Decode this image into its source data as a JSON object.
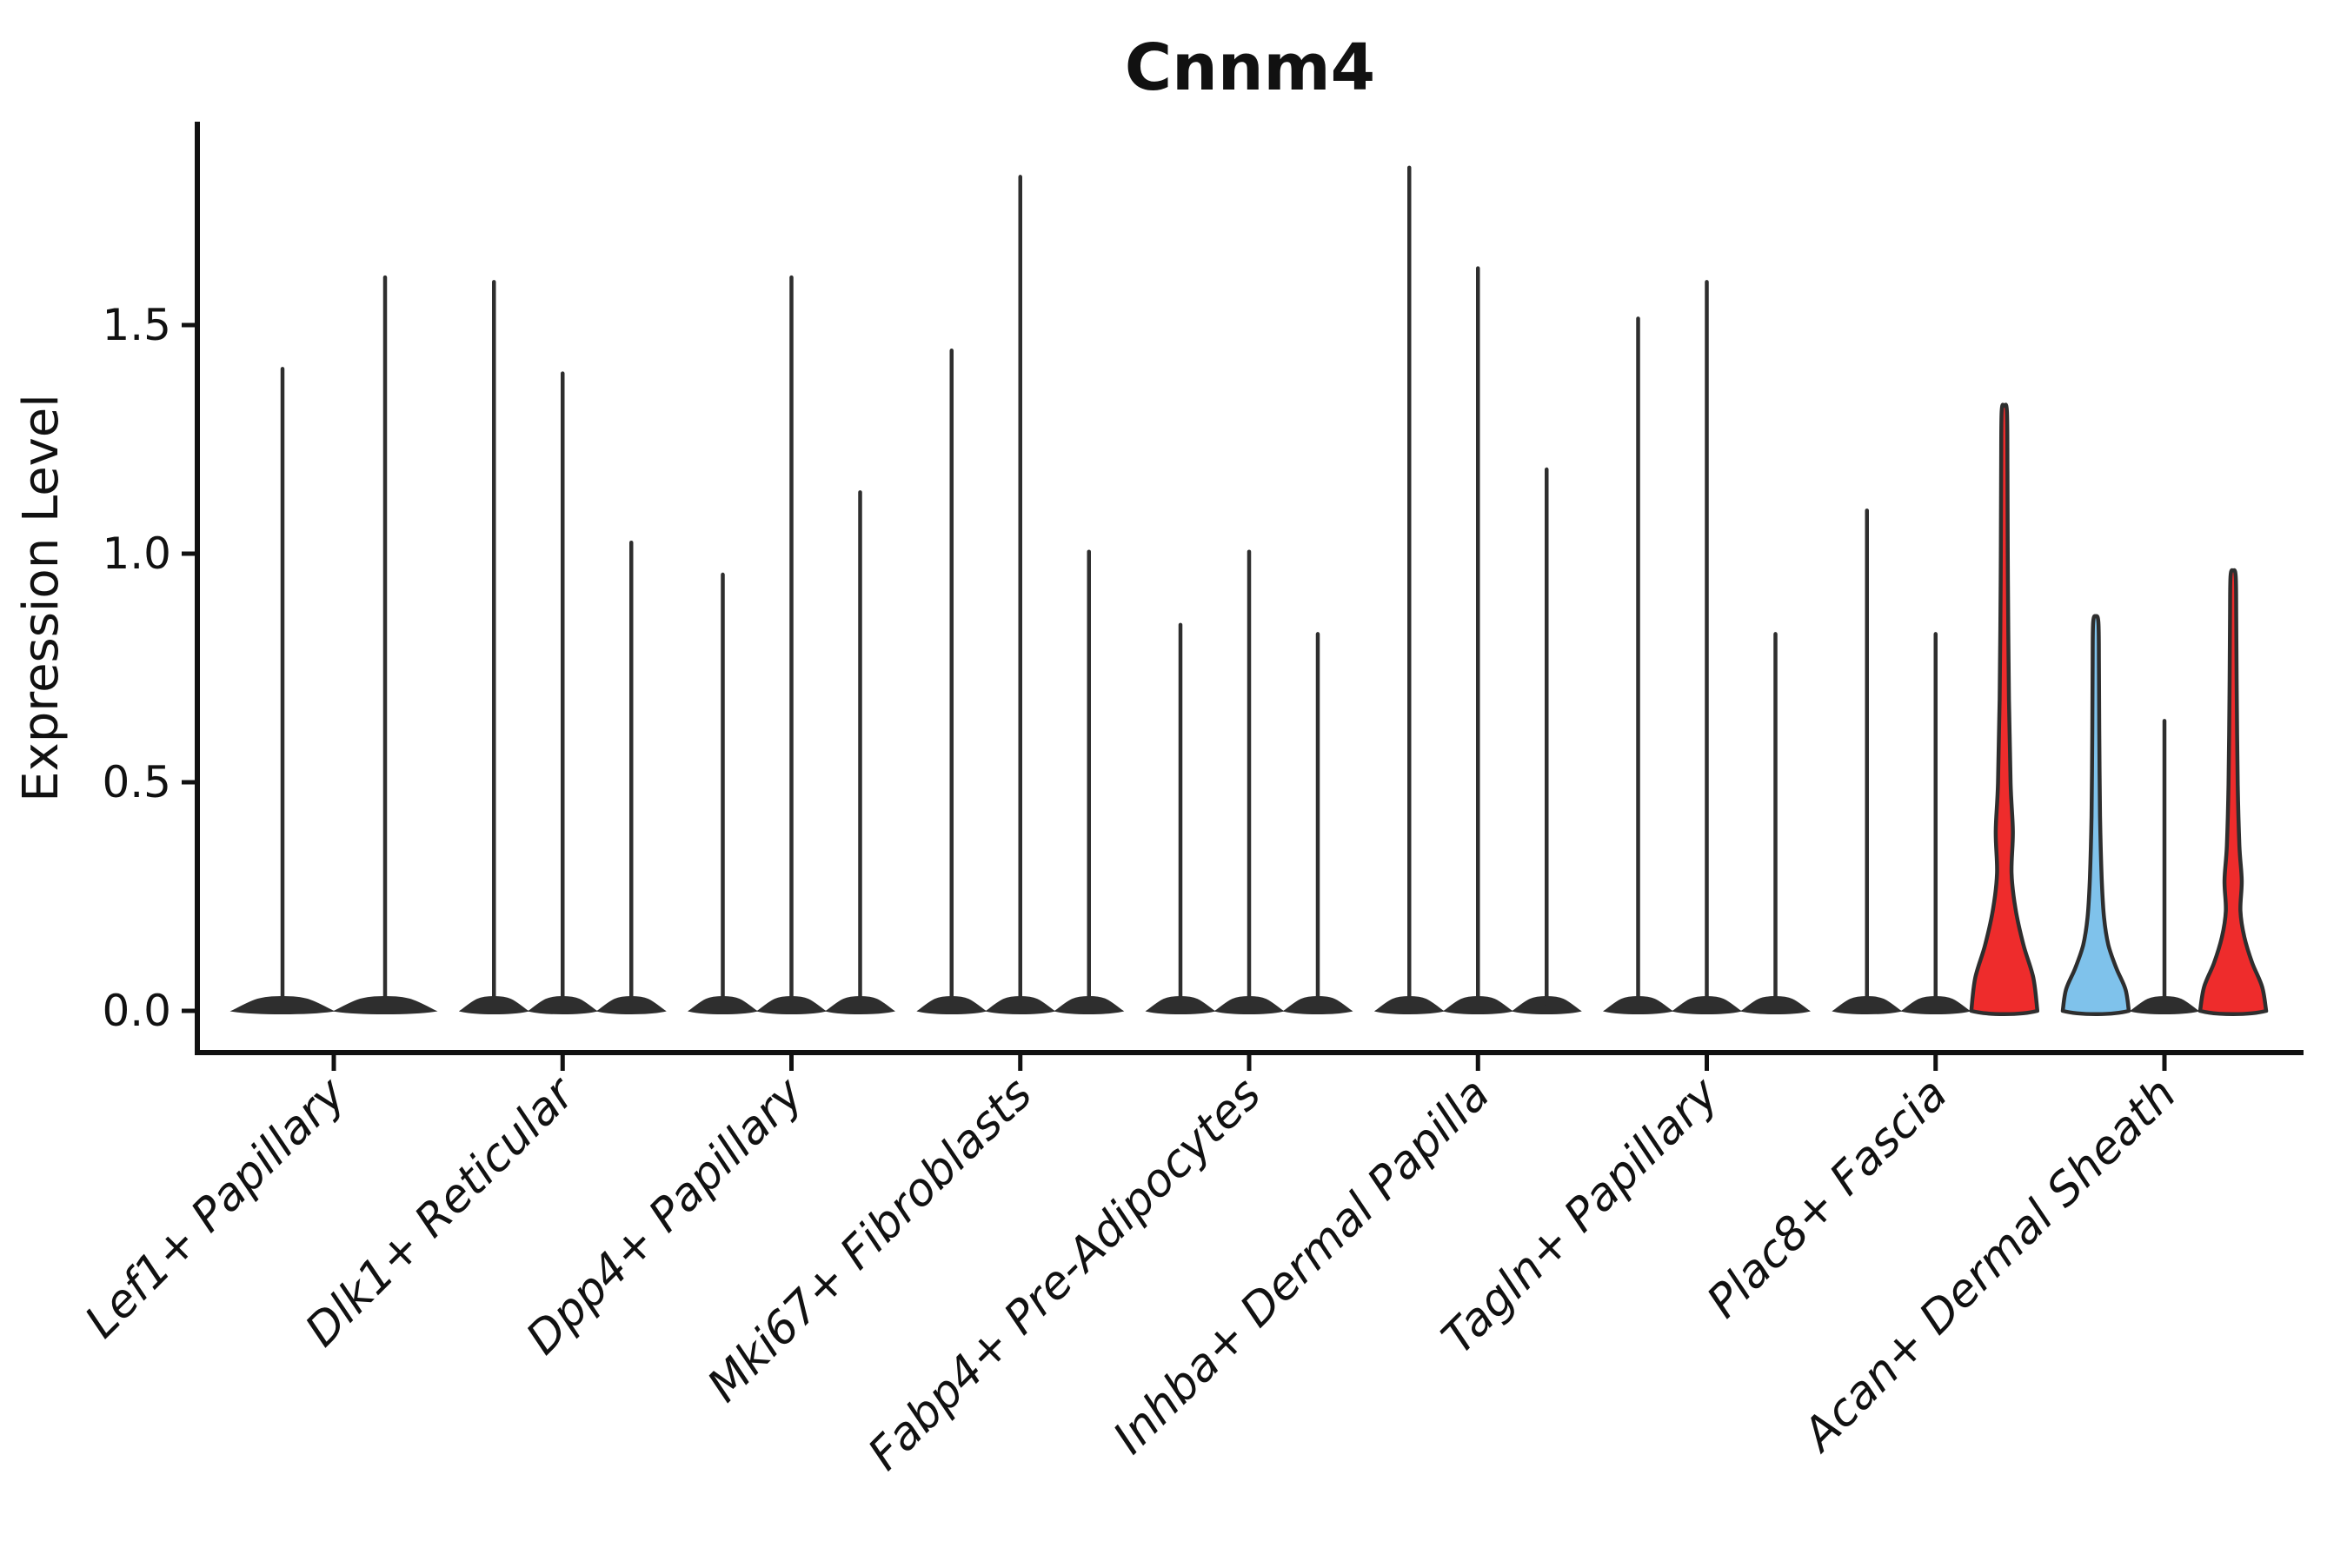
{
  "chart_data": {
    "type": "violin",
    "title": "Cnnm4",
    "ylabel": "Expression Level",
    "xlabel": "",
    "yticks": [
      "0.0",
      "0.5",
      "1.0",
      "1.5"
    ],
    "ylim": [
      0,
      1.95
    ],
    "grid": false,
    "legend": "none",
    "colors": {
      "axis": "#111111",
      "outline": "#2e2e2e",
      "red": "#ee2c2c",
      "blue": "#7fc2eb"
    },
    "categories": [
      "Lef1+ Papillary",
      "Dlk1+ Reticular",
      "Dpp4+ Papillary",
      "Mki67+ Fibroblasts",
      "Fabp4+ Pre-Adipocytes",
      "Inhba+ Dermal Papilla",
      "Tagln+ Papillary",
      "Plac8+ Fascia",
      "Acan+ Dermal Sheath"
    ],
    "groups": [
      {
        "category": "Lef1+ Papillary",
        "violins": [
          {
            "peak": 1.41,
            "shape": "collapsed",
            "fill": null
          },
          {
            "peak": 1.61,
            "shape": "collapsed",
            "fill": null
          }
        ]
      },
      {
        "category": "Dlk1+ Reticular",
        "violins": [
          {
            "peak": 1.6,
            "shape": "collapsed",
            "fill": null
          },
          {
            "peak": 1.4,
            "shape": "collapsed",
            "fill": null
          },
          {
            "peak": 1.03,
            "shape": "collapsed",
            "fill": null
          }
        ]
      },
      {
        "category": "Dpp4+ Papillary",
        "violins": [
          {
            "peak": 0.96,
            "shape": "collapsed",
            "fill": null
          },
          {
            "peak": 1.61,
            "shape": "collapsed",
            "fill": null
          },
          {
            "peak": 1.14,
            "shape": "collapsed",
            "fill": null
          }
        ]
      },
      {
        "category": "Mki67+ Fibroblasts",
        "violins": [
          {
            "peak": 1.45,
            "shape": "collapsed",
            "fill": null
          },
          {
            "peak": 1.83,
            "shape": "collapsed",
            "fill": null
          },
          {
            "peak": 1.01,
            "shape": "collapsed",
            "fill": null
          }
        ]
      },
      {
        "category": "Fabp4+ Pre-Adipocytes",
        "violins": [
          {
            "peak": 0.85,
            "shape": "collapsed",
            "fill": null
          },
          {
            "peak": 1.01,
            "shape": "collapsed",
            "fill": null
          },
          {
            "peak": 0.83,
            "shape": "collapsed",
            "fill": null
          }
        ]
      },
      {
        "category": "Inhba+ Dermal Papilla",
        "violins": [
          {
            "peak": 1.85,
            "shape": "collapsed",
            "fill": null
          },
          {
            "peak": 1.63,
            "shape": "collapsed",
            "fill": null
          },
          {
            "peak": 1.19,
            "shape": "collapsed",
            "fill": null
          }
        ]
      },
      {
        "category": "Tagln+ Papillary",
        "violins": [
          {
            "peak": 1.52,
            "shape": "collapsed",
            "fill": null
          },
          {
            "peak": 1.6,
            "shape": "collapsed",
            "fill": null
          },
          {
            "peak": 0.83,
            "shape": "collapsed",
            "fill": null
          }
        ]
      },
      {
        "category": "Plac8+ Fascia",
        "violins": [
          {
            "peak": 1.1,
            "shape": "collapsed",
            "fill": null
          },
          {
            "peak": 0.83,
            "shape": "collapsed",
            "fill": null
          },
          {
            "peak": 1.31,
            "shape": "violin",
            "fill": "red"
          }
        ]
      },
      {
        "category": "Acan+ Dermal Sheath",
        "violins": [
          {
            "peak": 0.85,
            "shape": "violin",
            "fill": "blue"
          },
          {
            "peak": 0.64,
            "shape": "collapsed",
            "fill": null
          },
          {
            "peak": 0.95,
            "shape": "violin",
            "fill": "red"
          }
        ]
      }
    ]
  }
}
